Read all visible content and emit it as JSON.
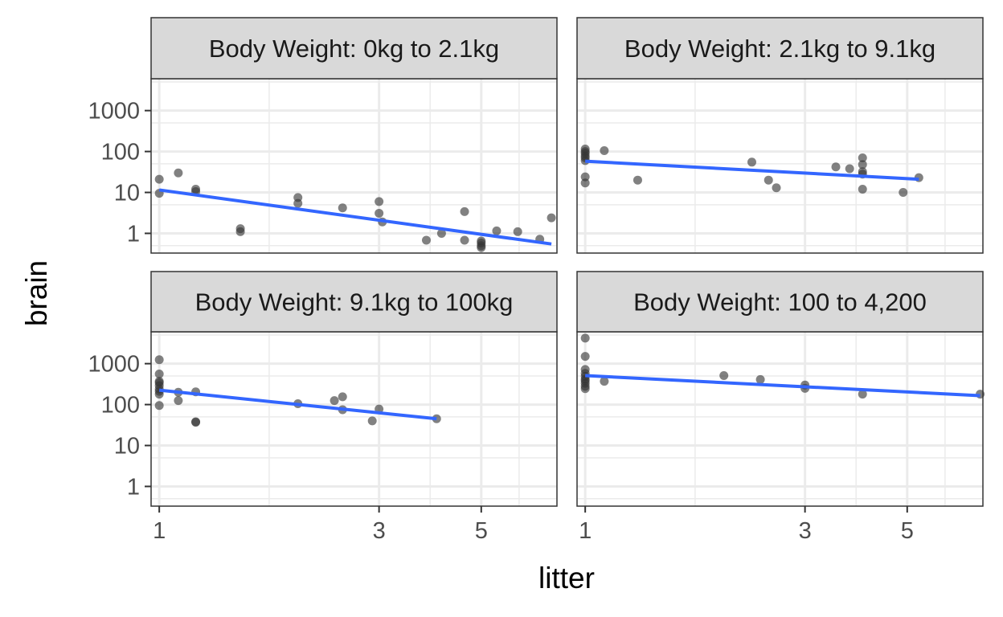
{
  "chart_data": {
    "type": "scatter",
    "layout": "facet-grid-2x2",
    "xlabel": "litter",
    "ylabel": "brain",
    "x_scale": "log",
    "y_scale": "log",
    "x_ticks": [
      1,
      3,
      5
    ],
    "y_ticks": [
      1,
      10,
      100,
      1000
    ],
    "xlim": [
      0.96,
      7.3
    ],
    "ylim": [
      0.33,
      6000
    ],
    "grid": true,
    "colors": {
      "points": "#333333",
      "fit_line": "#3366FF",
      "strip_fill": "#D9D9D9",
      "grid": "#EBEBEB",
      "border": "#333333"
    },
    "facets": [
      {
        "label": "Body Weight: 0kg to 2.1kg",
        "points": [
          [
            1,
            21
          ],
          [
            1,
            9.5
          ],
          [
            1.1,
            30
          ],
          [
            1.2,
            12
          ],
          [
            1.2,
            10.5
          ],
          [
            1.5,
            1.3
          ],
          [
            1.5,
            1.1
          ],
          [
            2,
            7.5
          ],
          [
            2,
            5.4
          ],
          [
            2.5,
            4.2
          ],
          [
            3,
            6
          ],
          [
            3,
            3.1
          ],
          [
            3.05,
            1.9
          ],
          [
            3.8,
            0.68
          ],
          [
            4.1,
            1
          ],
          [
            4.6,
            3.4
          ],
          [
            4.6,
            0.68
          ],
          [
            5,
            0.65
          ],
          [
            5,
            0.58
          ],
          [
            5,
            0.5
          ],
          [
            5,
            0.45
          ],
          [
            5.4,
            1.15
          ],
          [
            6,
            1.1
          ],
          [
            6.7,
            0.72
          ],
          [
            7.1,
            2.4
          ]
        ],
        "fit": [
          [
            1,
            11.5
          ],
          [
            7.1,
            0.55
          ]
        ]
      },
      {
        "label": "Body Weight: 2.1kg to 9.1kg",
        "points": [
          [
            1,
            115
          ],
          [
            1,
            100
          ],
          [
            1,
            90
          ],
          [
            1,
            78
          ],
          [
            1,
            70
          ],
          [
            1,
            60
          ],
          [
            1,
            24
          ],
          [
            1,
            17
          ],
          [
            1.1,
            105
          ],
          [
            1.3,
            20
          ],
          [
            2.3,
            55
          ],
          [
            2.5,
            20
          ],
          [
            2.6,
            13
          ],
          [
            3.5,
            42
          ],
          [
            3.75,
            38
          ],
          [
            4,
            70
          ],
          [
            4,
            48
          ],
          [
            4,
            32
          ],
          [
            4,
            28
          ],
          [
            4,
            12
          ],
          [
            4.9,
            10
          ],
          [
            5.3,
            23
          ]
        ],
        "fit": [
          [
            1,
            58
          ],
          [
            5.3,
            21
          ]
        ]
      },
      {
        "label": "Body Weight: 9.1kg to 100kg",
        "points": [
          [
            1,
            1250
          ],
          [
            1,
            560
          ],
          [
            1,
            370
          ],
          [
            1,
            340
          ],
          [
            1,
            290
          ],
          [
            1,
            240
          ],
          [
            1,
            210
          ],
          [
            1,
            180
          ],
          [
            1,
            95
          ],
          [
            1.1,
            200
          ],
          [
            1.1,
            125
          ],
          [
            1.2,
            205
          ],
          [
            1.2,
            38
          ],
          [
            1.2,
            37
          ],
          [
            2,
            105
          ],
          [
            2.4,
            125
          ],
          [
            2.5,
            155
          ],
          [
            2.5,
            75
          ],
          [
            2.9,
            40
          ],
          [
            3,
            78
          ],
          [
            4,
            45
          ]
        ],
        "fit": [
          [
            1,
            225
          ],
          [
            4,
            45
          ]
        ]
      },
      {
        "label": "Body Weight: 100 to 4,200",
        "points": [
          [
            1,
            4200
          ],
          [
            1,
            1500
          ],
          [
            1,
            720
          ],
          [
            1,
            580
          ],
          [
            1,
            490
          ],
          [
            1,
            420
          ],
          [
            1,
            380
          ],
          [
            1,
            330
          ],
          [
            1,
            280
          ],
          [
            1,
            245
          ],
          [
            1.1,
            370
          ],
          [
            2,
            510
          ],
          [
            2.4,
            410
          ],
          [
            3,
            300
          ],
          [
            3,
            250
          ],
          [
            4,
            180
          ],
          [
            7.2,
            180
          ]
        ],
        "fit": [
          [
            1,
            510
          ],
          [
            7.2,
            165
          ]
        ]
      }
    ]
  }
}
